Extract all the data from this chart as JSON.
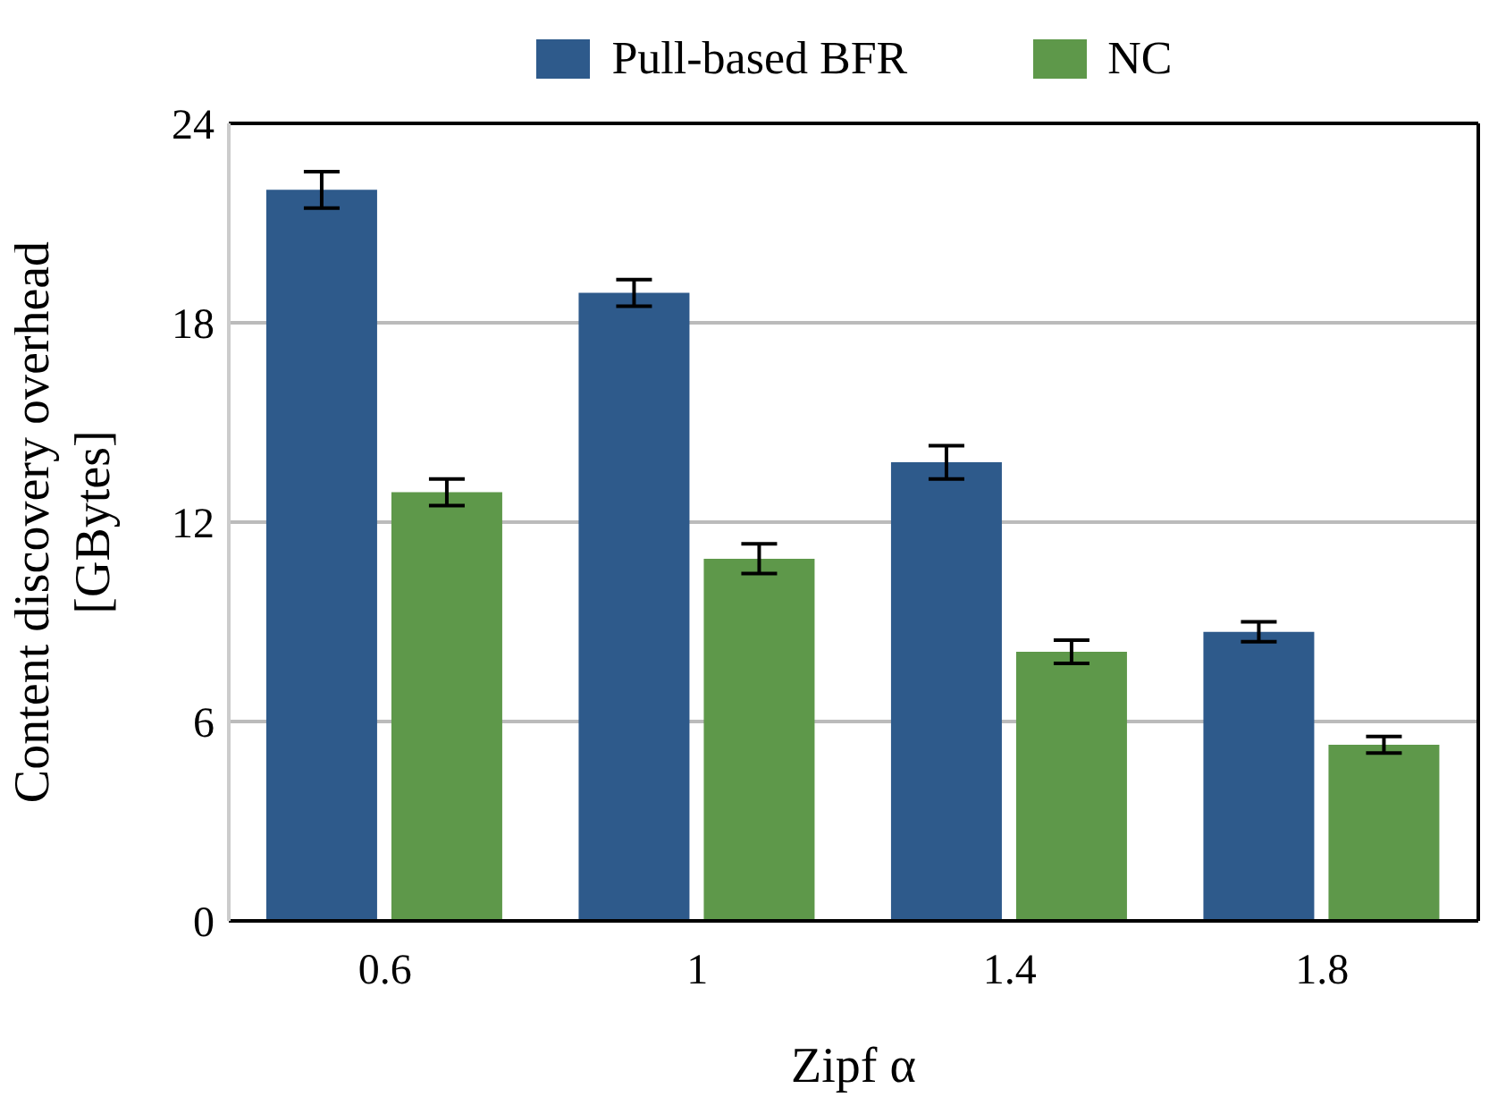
{
  "chart_data": {
    "type": "bar",
    "xlabel": "Zipf α",
    "ylabel": "Content discovery overhead [GBytes]",
    "categories": [
      "0.6",
      "1",
      "1.4",
      "1.8"
    ],
    "series": [
      {
        "name": "Pull-based BFR",
        "color": "#2e5a8b",
        "values": [
          22,
          18.9,
          13.8,
          8.7
        ],
        "errors": [
          0.55,
          0.4,
          0.5,
          0.3
        ]
      },
      {
        "name": "NC",
        "color": "#5e984a",
        "values": [
          12.9,
          10.9,
          8.1,
          5.3
        ],
        "errors": [
          0.4,
          0.45,
          0.35,
          0.25
        ]
      }
    ],
    "ylim": [
      0,
      24
    ],
    "yticks": [
      0,
      6,
      12,
      18,
      24
    ],
    "grid": "y",
    "legend": "top"
  }
}
